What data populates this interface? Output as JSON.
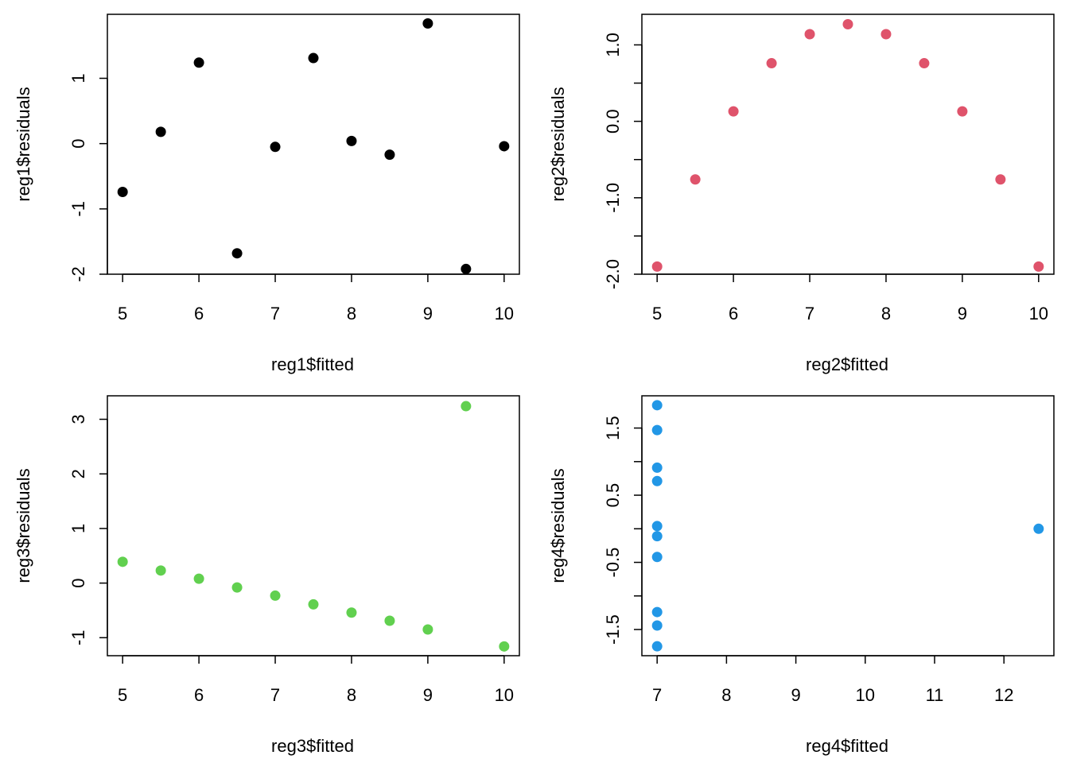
{
  "chart_data": [
    {
      "type": "scatter",
      "title": "",
      "xlabel": "reg1$fitted",
      "ylabel": "reg1$residuals",
      "color": "#000000",
      "xlim": [
        4.8,
        10.2
      ],
      "ylim": [
        -2.0,
        1.98
      ],
      "xticks": [
        5,
        6,
        7,
        8,
        9,
        10
      ],
      "xtick_labels": [
        "5",
        "6",
        "7",
        "8",
        "9",
        "10"
      ],
      "yticks": [
        -2,
        -1,
        0,
        1
      ],
      "ytick_labels": [
        "-2",
        "-1",
        "0",
        "1"
      ],
      "x": [
        8,
        7,
        9.5,
        7.5,
        8.5,
        10,
        6,
        5,
        9,
        6.5,
        5.5
      ],
      "y": [
        0.04,
        -0.05,
        -1.92,
        1.31,
        -0.17,
        -0.04,
        1.24,
        -0.74,
        1.84,
        -1.68,
        0.18
      ]
    },
    {
      "type": "scatter",
      "title": "",
      "xlabel": "reg2$fitted",
      "ylabel": "reg2$residuals",
      "color": "#DF536B",
      "xlim": [
        4.8,
        10.2
      ],
      "ylim": [
        -2.0,
        1.4
      ],
      "xticks": [
        5,
        6,
        7,
        8,
        9,
        10
      ],
      "xtick_labels": [
        "5",
        "6",
        "7",
        "8",
        "9",
        "10"
      ],
      "yticks": [
        -2.0,
        -1.5,
        -1.0,
        -0.5,
        0.0,
        0.5,
        1.0
      ],
      "ytick_labels": [
        "-2.0",
        "",
        "-1.0",
        "",
        "0.0",
        "",
        "1.0"
      ],
      "x": [
        8,
        7,
        9.5,
        7.5,
        8.5,
        10,
        6,
        5,
        9,
        6.5,
        5.5
      ],
      "y": [
        1.14,
        1.14,
        -0.76,
        1.27,
        0.76,
        -1.9,
        0.13,
        -1.9,
        0.13,
        0.76,
        -0.76
      ]
    },
    {
      "type": "scatter",
      "title": "",
      "xlabel": "reg3$fitted",
      "ylabel": "reg3$residuals",
      "color": "#61D04F",
      "xlim": [
        4.8,
        10.2
      ],
      "ylim": [
        -1.33,
        3.43
      ],
      "xticks": [
        5,
        6,
        7,
        8,
        9,
        10
      ],
      "xtick_labels": [
        "5",
        "6",
        "7",
        "8",
        "9",
        "10"
      ],
      "yticks": [
        -1,
        0,
        1,
        2,
        3
      ],
      "ytick_labels": [
        "-1",
        "0",
        "1",
        "2",
        "3"
      ],
      "x": [
        8,
        7,
        9.5,
        7.5,
        8.5,
        10,
        6,
        5,
        9,
        6.5,
        5.5
      ],
      "y": [
        -0.54,
        -0.23,
        3.24,
        -0.39,
        -0.69,
        -1.16,
        0.08,
        0.39,
        -0.85,
        -0.08,
        0.23
      ]
    },
    {
      "type": "scatter",
      "title": "",
      "xlabel": "reg4$fitted",
      "ylabel": "reg4$residuals",
      "color": "#2297E6",
      "xlim": [
        6.78,
        12.72
      ],
      "ylim": [
        -1.89,
        1.98
      ],
      "xticks": [
        7,
        8,
        9,
        10,
        11,
        12
      ],
      "xtick_labels": [
        "7",
        "8",
        "9",
        "10",
        "11",
        "12"
      ],
      "yticks": [
        -1.5,
        -1.0,
        -0.5,
        0.0,
        0.5,
        1.0,
        1.5
      ],
      "ytick_labels": [
        "-1.5",
        "",
        "-0.5",
        "",
        "0.5",
        "",
        "1.5"
      ],
      "x": [
        7,
        7,
        7,
        7,
        7,
        7,
        7,
        12.5,
        7,
        7,
        7
      ],
      "y": [
        -0.42,
        -1.24,
        0.71,
        1.84,
        1.47,
        0.04,
        -1.75,
        0.0,
        -1.44,
        0.91,
        -0.11
      ]
    }
  ]
}
